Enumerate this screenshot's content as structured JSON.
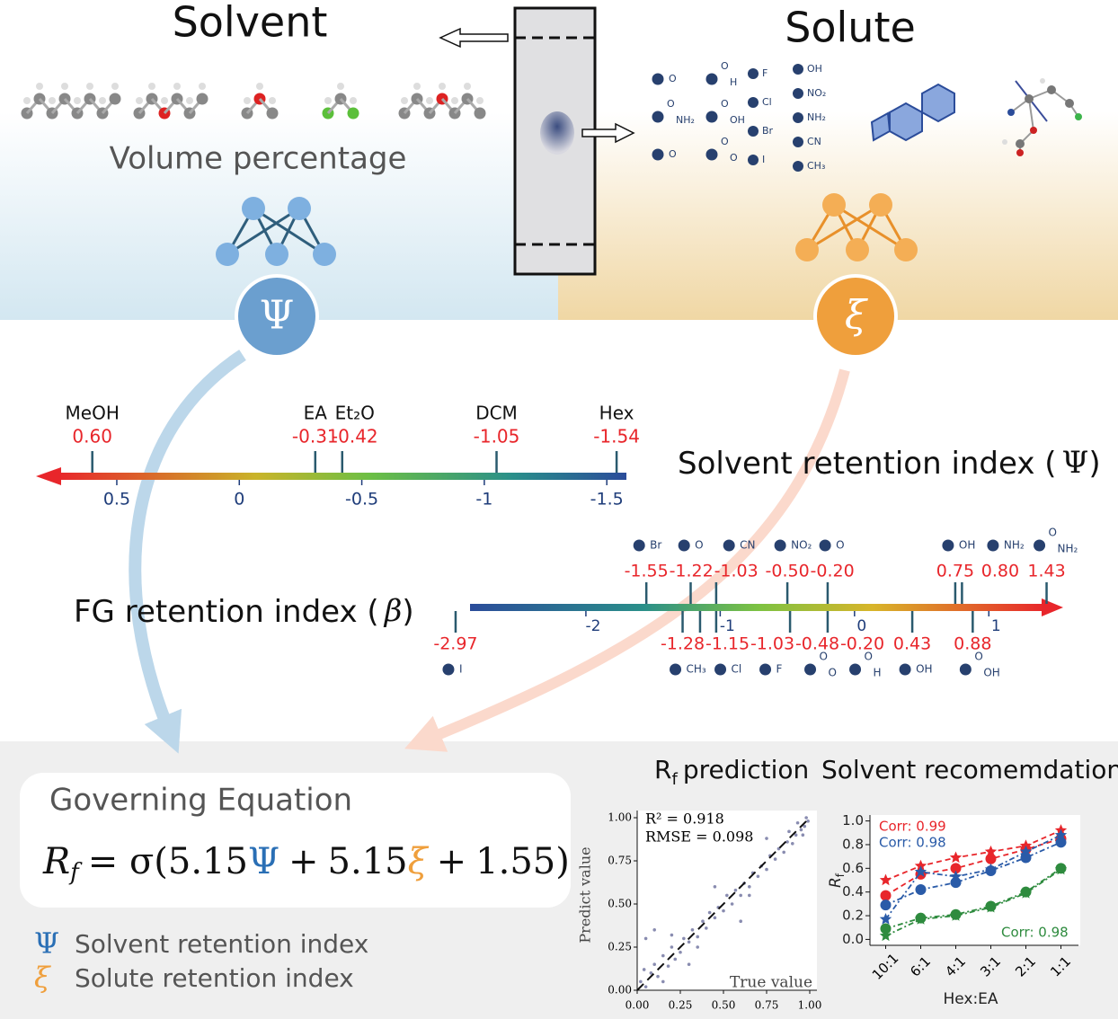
{
  "solvent": {
    "title": "Solvent",
    "subtitle": "Volume percentage",
    "symbol": "Ψ"
  },
  "solute": {
    "title": "Solute",
    "symbol": "ξ",
    "carbonyls": [
      [
        "O"
      ],
      [
        "O",
        "H"
      ],
      [
        "O",
        "NH₂"
      ],
      [
        "O",
        "OH"
      ],
      [
        "O"
      ],
      [
        "O",
        "O"
      ]
    ],
    "halogens": [
      "F",
      "Cl",
      "Br",
      "I"
    ],
    "groups": [
      "OH",
      "NO₂",
      "NH₂",
      "CN",
      "CH₃"
    ]
  },
  "solvent_index": {
    "title": "Solvent retention index (",
    "symbol": "Ψ",
    "close": ")",
    "names": [
      "MeOH",
      "EA",
      "Et₂O",
      "DCM",
      "Hex"
    ],
    "values": [
      0.6,
      -0.31,
      -0.42,
      -1.05,
      -1.54
    ],
    "value_labels": [
      "0.60",
      "-0.31",
      "-0.42",
      "-1.05",
      "-1.54"
    ],
    "xlim": [
      0.83,
      -1.58
    ],
    "xticks": [
      0.5,
      0,
      -0.5,
      -1,
      -1.5
    ]
  },
  "fg_index": {
    "title": "FG retention index (",
    "symbol": "β",
    "close": ")",
    "xlim": [
      -3.05,
      1.5
    ],
    "xticks": [
      -2,
      -1,
      0,
      1
    ],
    "above": {
      "groups": [
        [
          "Br"
        ],
        [
          "O"
        ],
        [
          "CN"
        ],
        [
          "NO₂"
        ],
        [
          "O"
        ],
        [
          "OH"
        ],
        [
          "NH₂"
        ],
        [
          "O",
          "NH₂"
        ]
      ],
      "values": [
        -1.55,
        -1.22,
        -1.03,
        -0.5,
        -0.2,
        0.75,
        0.8,
        1.43
      ],
      "value_labels": [
        "-1.55",
        "-1.22",
        "-1.03",
        "-0.50",
        "-0.20",
        "0.75",
        "0.80",
        "1.43"
      ]
    },
    "below": {
      "groups": [
        [
          "I"
        ],
        [
          "CH₃"
        ],
        [
          "Cl"
        ],
        [
          "F"
        ],
        [
          "O",
          "O"
        ],
        [
          "O",
          "H"
        ],
        [
          "OH"
        ],
        [
          "O",
          "OH"
        ]
      ],
      "values": [
        -2.97,
        -1.28,
        -1.15,
        -1.03,
        -0.48,
        -0.2,
        0.43,
        0.88
      ],
      "value_labels": [
        "-2.97",
        "-1.28",
        "-1.15",
        "-1.03",
        "-0.48",
        "-0.20",
        "0.43",
        "0.88"
      ]
    }
  },
  "equation": {
    "title": "Governing Equation",
    "lhs": "R",
    "sub": "f",
    "eq": "= σ(",
    "a": 5.15,
    "psi": "Ψ",
    "plus1": "+",
    "b": 5.15,
    "xi": "ξ",
    "plus2": "+",
    "c": 1.55,
    "close": ")"
  },
  "legend": [
    {
      "symbol": "Ψ",
      "text": "Solvent retention index"
    },
    {
      "symbol": "ξ",
      "text": "Solute retention index"
    }
  ],
  "chart_data": [
    {
      "type": "scatter",
      "title": "R",
      "title_sub": "f",
      "title_rest": "prediction",
      "xlabel": "True value",
      "ylabel": "Predict value",
      "color": "#6b6f9c",
      "annotations": [
        "R² = 0.918",
        "RMSE = 0.098"
      ],
      "xlim": [
        0,
        1
      ],
      "ylim": [
        0,
        1
      ],
      "xticks": [
        {
          "value": 0,
          "label": "0.00"
        },
        0.25,
        {
          "value": 0.5,
          "label": "0.50"
        },
        0.75,
        {
          "value": 1,
          "label": "1.00"
        }
      ],
      "yticks": [
        {
          "value": 0,
          "label": "0.00"
        },
        0.25,
        {
          "value": 0.5,
          "label": "0.50"
        },
        0.75,
        {
          "value": 1,
          "label": "1.00"
        }
      ],
      "x": [
        0.02,
        0.04,
        0.05,
        0.08,
        0.1,
        0.12,
        0.15,
        0.18,
        0.2,
        0.22,
        0.25,
        0.27,
        0.3,
        0.32,
        0.35,
        0.38,
        0.4,
        0.42,
        0.45,
        0.47,
        0.5,
        0.52,
        0.55,
        0.57,
        0.6,
        0.62,
        0.65,
        0.67,
        0.7,
        0.72,
        0.75,
        0.77,
        0.8,
        0.82,
        0.85,
        0.87,
        0.9,
        0.92,
        0.95,
        0.97,
        0.99,
        0.05,
        0.1,
        0.15,
        0.3,
        0.45,
        0.6,
        0.75,
        0.88,
        0.93,
        0.96,
        0.98,
        0.2,
        0.35,
        0.65
      ],
      "y": [
        0.05,
        0.12,
        0.02,
        0.1,
        0.15,
        0.08,
        0.2,
        0.14,
        0.25,
        0.18,
        0.22,
        0.3,
        0.28,
        0.35,
        0.31,
        0.4,
        0.36,
        0.45,
        0.42,
        0.48,
        0.46,
        0.55,
        0.5,
        0.58,
        0.55,
        0.62,
        0.6,
        0.68,
        0.66,
        0.72,
        0.7,
        0.78,
        0.76,
        0.82,
        0.8,
        0.86,
        0.85,
        0.9,
        0.93,
        0.95,
        0.98,
        0.3,
        0.35,
        0.05,
        0.15,
        0.6,
        0.4,
        0.88,
        0.92,
        0.97,
        0.9,
        1.0,
        0.32,
        0.25,
        0.55
      ]
    },
    {
      "type": "line",
      "title": "Solvent recomemdation",
      "xlabel": "Hex:EA",
      "ylabel": "R",
      "ylabel_sub": "f",
      "categories": [
        "10:1",
        "6:1",
        "4:1",
        "3:1",
        "2:1",
        "1:1"
      ],
      "ylim": [
        -0.05,
        1.05
      ],
      "yticks": [
        {
          "value": 0,
          "label": "0.0"
        },
        0.2,
        0.4,
        0.6,
        0.8,
        {
          "value": 1,
          "label": "1.0"
        }
      ],
      "series": [
        {
          "color": "#e8262b",
          "marker": "circle",
          "dash": "6 4",
          "values": [
            0.37,
            0.55,
            0.6,
            0.68,
            0.76,
            0.85
          ]
        },
        {
          "color": "#e8262b",
          "marker": "star",
          "dash": "6 4",
          "values": [
            0.5,
            0.62,
            0.69,
            0.74,
            0.79,
            0.92
          ]
        },
        {
          "color": "#2a5ba8",
          "marker": "circle",
          "dash": "6 3 2 3",
          "values": [
            0.29,
            0.42,
            0.48,
            0.58,
            0.69,
            0.82
          ]
        },
        {
          "color": "#2a5ba8",
          "marker": "star",
          "dash": "6 3 2 3",
          "values": [
            0.17,
            0.57,
            0.53,
            0.59,
            0.74,
            0.88
          ]
        },
        {
          "color": "#2e8b3e",
          "marker": "circle",
          "dash": "6 3 2 3",
          "values": [
            0.09,
            0.18,
            0.21,
            0.28,
            0.4,
            0.6
          ]
        },
        {
          "color": "#2e8b3e",
          "marker": "star",
          "dash": "6 3 2 3",
          "values": [
            0.03,
            0.17,
            0.2,
            0.27,
            0.39,
            0.59
          ]
        }
      ],
      "annotations": [
        {
          "text": "Corr: 0.99",
          "color": "#e8262b"
        },
        {
          "text": "Corr: 0.98",
          "color": "#2a5ba8"
        },
        {
          "text": "Corr: 0.98",
          "color": "#2e8b3e"
        }
      ]
    }
  ]
}
